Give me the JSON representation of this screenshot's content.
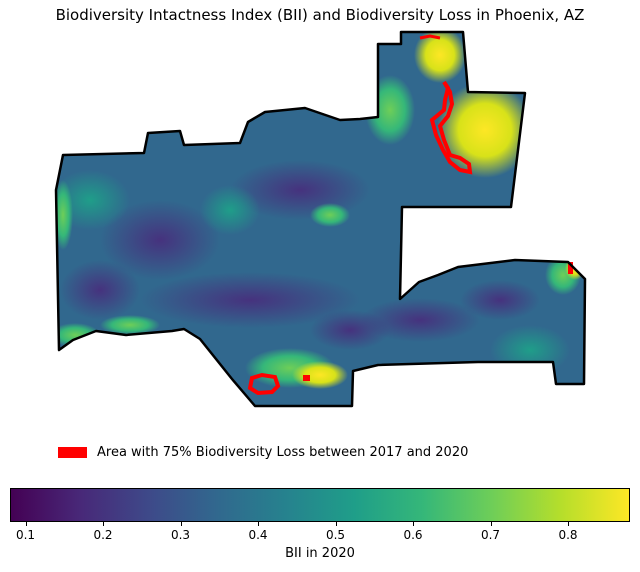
{
  "title": "Biodiversity Intactness Index (BII) and Biodiversity Loss in Phoenix, AZ",
  "legend": {
    "label": "Area with 75% Biodiversity Loss between 2017 and 2020",
    "color": "#ff0000"
  },
  "colorbar": {
    "label": "BII in 2020",
    "colormap": "viridis",
    "range": [
      0.08,
      0.88
    ],
    "ticks": [
      0.1,
      0.2,
      0.3,
      0.4,
      0.5,
      0.6,
      0.7,
      0.8
    ],
    "tick_labels": [
      "0.1",
      "0.2",
      "0.3",
      "0.4",
      "0.5",
      "0.6",
      "0.7",
      "0.8"
    ]
  },
  "colors": {
    "boundary": "#000000",
    "base_fill": "#355f8d",
    "loss": "#ff0000"
  }
}
